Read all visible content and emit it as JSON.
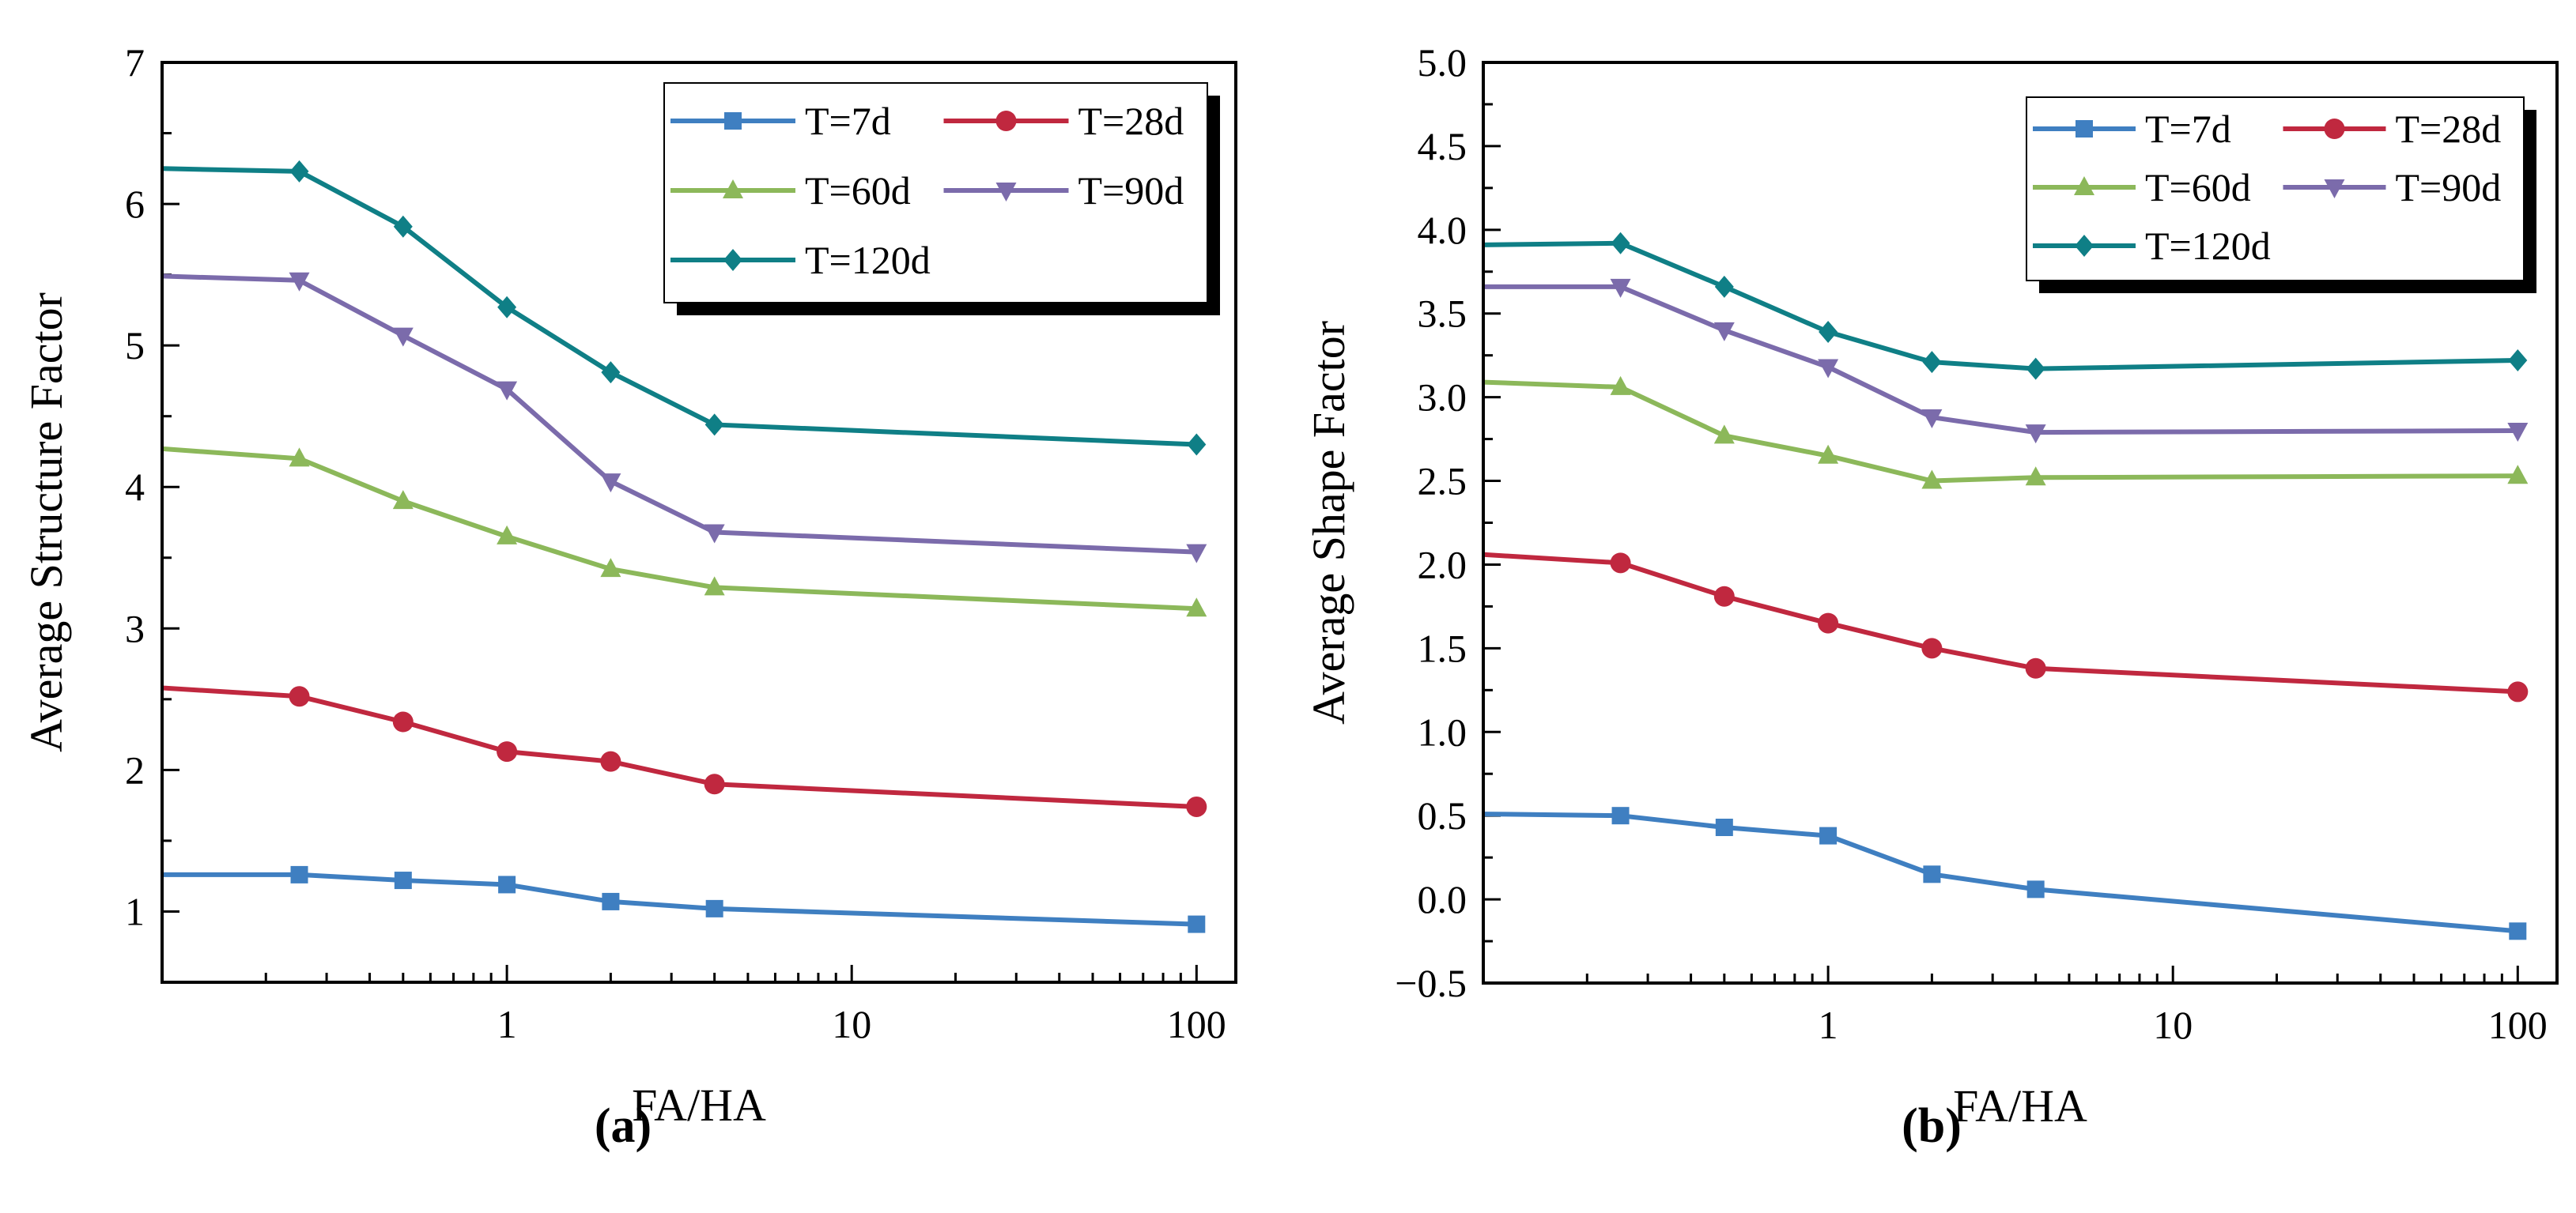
{
  "chart_data": [
    {
      "type": "line",
      "panel_label": "(a)",
      "panel_letter": "a",
      "title": "",
      "xlabel": "FA/HA",
      "ylabel": "Average Structure Factor",
      "xscale": "log",
      "xlim": [
        0.1,
        130
      ],
      "ylim": [
        0.5,
        7
      ],
      "xticks": [
        1,
        10,
        100
      ],
      "xtick_labels": [
        "1",
        "10",
        "100"
      ],
      "yticks": [
        1,
        2,
        3,
        4,
        5,
        6,
        7
      ],
      "ytick_labels": [
        "1",
        "2",
        "3",
        "4",
        "5",
        "6",
        "7"
      ],
      "legend_position": "top-right",
      "x": [
        0.1,
        0.25,
        0.5,
        1,
        2,
        4,
        100
      ],
      "series": [
        {
          "name": "T=7d",
          "color": "#3f7fc1",
          "marker": "square",
          "values": [
            1.26,
            1.26,
            1.22,
            1.19,
            1.07,
            1.02,
            0.91
          ]
        },
        {
          "name": "T=28d",
          "color": "#c0283f",
          "marker": "circle",
          "values": [
            2.58,
            2.52,
            2.34,
            2.13,
            2.06,
            1.9,
            1.74
          ]
        },
        {
          "name": "T=60d",
          "color": "#8cb85a",
          "marker": "triangle-up",
          "values": [
            4.27,
            4.2,
            3.9,
            3.65,
            3.42,
            3.29,
            3.14
          ]
        },
        {
          "name": "T=90d",
          "color": "#7b6bab",
          "marker": "triangle-down",
          "values": [
            5.49,
            5.46,
            5.07,
            4.69,
            4.04,
            3.68,
            3.54
          ]
        },
        {
          "name": "T=120d",
          "color": "#0f7f86",
          "marker": "diamond",
          "values": [
            6.25,
            6.23,
            5.84,
            5.27,
            4.81,
            4.44,
            4.3
          ]
        }
      ]
    },
    {
      "type": "line",
      "panel_label": "(b)",
      "panel_letter": "b",
      "title": "",
      "xlabel": "FA/HA",
      "ylabel": "Average Shape Factor",
      "xscale": "log",
      "xlim": [
        0.1,
        130
      ],
      "ylim": [
        -0.5,
        5.0
      ],
      "xticks": [
        1,
        10,
        100
      ],
      "xtick_labels": [
        "1",
        "10",
        "100"
      ],
      "yticks": [
        -0.5,
        0,
        0.5,
        1,
        1.5,
        2,
        2.5,
        3,
        3.5,
        4,
        4.5,
        5
      ],
      "ytick_labels": [
        "−0.5",
        "0.0",
        "0.5",
        "1.0",
        "1.5",
        "2.0",
        "2.5",
        "3.0",
        "3.5",
        "4.0",
        "4.5",
        "5.0"
      ],
      "legend_position": "top-right",
      "x": [
        0.1,
        0.25,
        0.5,
        1,
        2,
        4,
        100
      ],
      "series": [
        {
          "name": "T=7d",
          "color": "#3f7fc1",
          "marker": "square",
          "values": [
            0.51,
            0.5,
            0.43,
            0.38,
            0.15,
            0.06,
            -0.19
          ]
        },
        {
          "name": "T=28d",
          "color": "#c0283f",
          "marker": "circle",
          "values": [
            2.06,
            2.01,
            1.81,
            1.65,
            1.5,
            1.38,
            1.24
          ]
        },
        {
          "name": "T=60d",
          "color": "#8cb85a",
          "marker": "triangle-up",
          "values": [
            3.09,
            3.06,
            2.77,
            2.65,
            2.5,
            2.52,
            2.53
          ]
        },
        {
          "name": "T=90d",
          "color": "#7b6bab",
          "marker": "triangle-down",
          "values": [
            3.66,
            3.66,
            3.4,
            3.18,
            2.88,
            2.79,
            2.8
          ]
        },
        {
          "name": "T=120d",
          "color": "#0f7f86",
          "marker": "diamond",
          "values": [
            3.91,
            3.92,
            3.66,
            3.39,
            3.21,
            3.17,
            3.22
          ]
        }
      ]
    }
  ]
}
